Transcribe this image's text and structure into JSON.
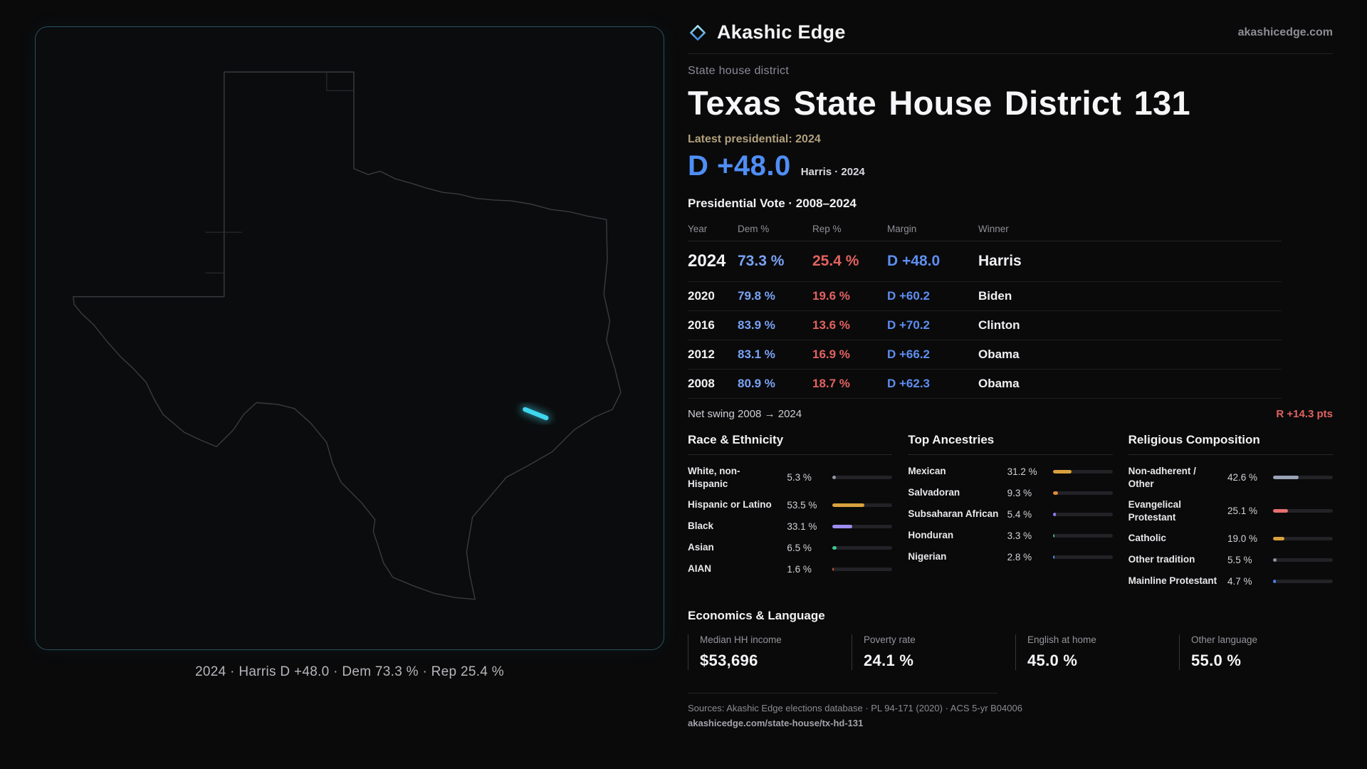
{
  "colors": {
    "dem": "#7aa3f5",
    "rep": "#e2625f",
    "margin-blue": "#5d8ef0",
    "headline-blue": "#4f8ef5",
    "swing-red": "#e2625f",
    "accent": "#3fd6ef"
  },
  "map": {
    "caption": "2024 · Harris D +48.0 · Dem 73.3 % · Rep 25.4 %"
  },
  "header": {
    "brand": "Akashic Edge",
    "site": "akashicedge.com",
    "kicker": "State house district",
    "title": "Texas State House District 131",
    "latest": "Latest presidential: 2024",
    "headline_margin": "D +48.0",
    "headline_detail": "Harris · 2024"
  },
  "vote_table": {
    "title": "Presidential Vote · 2008–2024",
    "columns": [
      "Year",
      "Dem %",
      "Rep %",
      "Margin",
      "Winner"
    ],
    "rows": [
      {
        "year": "2024",
        "dem": "73.3 %",
        "rep": "25.4 %",
        "margin": "D +48.0",
        "winner": "Harris"
      },
      {
        "year": "2020",
        "dem": "79.8 %",
        "rep": "19.6 %",
        "margin": "D +60.2",
        "winner": "Biden"
      },
      {
        "year": "2016",
        "dem": "83.9 %",
        "rep": "13.6 %",
        "margin": "D +70.2",
        "winner": "Clinton"
      },
      {
        "year": "2012",
        "dem": "83.1 %",
        "rep": "16.9 %",
        "margin": "D +66.2",
        "winner": "Obama"
      },
      {
        "year": "2008",
        "dem": "80.9 %",
        "rep": "18.7 %",
        "margin": "D +62.3",
        "winner": "Obama"
      }
    ],
    "swing_label": "Net swing 2008 → 2024",
    "swing_value": "R +14.3 pts"
  },
  "demographics": [
    {
      "title": "Race & Ethnicity",
      "items": [
        {
          "label": "White, non-Hispanic",
          "value": "5.3 %",
          "pct": 5.3,
          "color": "#9298a2"
        },
        {
          "label": "Hispanic or Latino",
          "value": "53.5 %",
          "pct": 53.5,
          "color": "#d9a23d"
        },
        {
          "label": "Black",
          "value": "33.1 %",
          "pct": 33.1,
          "color": "#9d8df2"
        },
        {
          "label": "Asian",
          "value": "6.5 %",
          "pct": 6.5,
          "color": "#3ec78f"
        },
        {
          "label": "AIAN",
          "value": "1.6 %",
          "pct": 1.6,
          "color": "#c65b3a"
        }
      ]
    },
    {
      "title": "Top Ancestries",
      "items": [
        {
          "label": "Mexican",
          "value": "31.2 %",
          "pct": 31.2,
          "color": "#d9a23d"
        },
        {
          "label": "Salvadoran",
          "value": "9.3 %",
          "pct": 9.3,
          "color": "#e0883a"
        },
        {
          "label": "Subsaharan African",
          "value": "5.4 %",
          "pct": 5.4,
          "color": "#8f7df0"
        },
        {
          "label": "Honduran",
          "value": "3.3 %",
          "pct": 3.3,
          "color": "#45b08c"
        },
        {
          "label": "Nigerian",
          "value": "2.8 %",
          "pct": 2.8,
          "color": "#5c8cf0"
        }
      ]
    },
    {
      "title": "Religious Composition",
      "items": [
        {
          "label": "Non-adherent / Other",
          "value": "42.6 %",
          "pct": 42.6,
          "color": "#9aa3b5"
        },
        {
          "label": "Evangelical Protestant",
          "value": "25.1 %",
          "pct": 25.1,
          "color": "#e87070"
        },
        {
          "label": "Catholic",
          "value": "19.0 %",
          "pct": 19.0,
          "color": "#d9a23d"
        },
        {
          "label": "Other tradition",
          "value": "5.5 %",
          "pct": 5.5,
          "color": "#8d93a0"
        },
        {
          "label": "Mainline Protestant",
          "value": "4.7 %",
          "pct": 4.7,
          "color": "#4f7ce8"
        }
      ]
    }
  ],
  "economics": {
    "title": "Economics & Language",
    "stats": [
      {
        "label": "Median HH income",
        "value": "$53,696"
      },
      {
        "label": "Poverty rate",
        "value": "24.1 %"
      },
      {
        "label": "English at home",
        "value": "45.0 %"
      },
      {
        "label": "Other language",
        "value": "55.0 %"
      }
    ]
  },
  "footer": {
    "sources": "Sources: Akashic Edge elections database · PL 94-171 (2020) · ACS 5-yr B04006",
    "permalink": "akashicedge.com/state-house/tx-hd-131"
  },
  "chart_data": [
    {
      "type": "table",
      "title": "Presidential Vote · 2008–2024",
      "columns": [
        "Year",
        "Dem %",
        "Rep %",
        "Margin",
        "Winner"
      ],
      "rows": [
        [
          2024,
          73.3,
          25.4,
          "D +48.0",
          "Harris"
        ],
        [
          2020,
          79.8,
          19.6,
          "D +60.2",
          "Biden"
        ],
        [
          2016,
          83.9,
          13.6,
          "D +70.2",
          "Clinton"
        ],
        [
          2012,
          83.1,
          16.9,
          "D +66.2",
          "Obama"
        ],
        [
          2008,
          80.9,
          18.7,
          "D +62.3",
          "Obama"
        ]
      ],
      "annotations": [
        "Latest presidential: 2024 — D +48.0 (Harris)",
        "Net swing 2008 → 2024: R +14.3 pts"
      ]
    },
    {
      "type": "bar",
      "title": "Race & Ethnicity",
      "categories": [
        "White, non-Hispanic",
        "Hispanic or Latino",
        "Black",
        "Asian",
        "AIAN"
      ],
      "values": [
        5.3,
        53.5,
        33.1,
        6.5,
        1.6
      ],
      "unit": "%",
      "orientation": "horizontal",
      "xlim": [
        0,
        100
      ],
      "grid": false
    },
    {
      "type": "bar",
      "title": "Top Ancestries",
      "categories": [
        "Mexican",
        "Salvadoran",
        "Subsaharan African",
        "Honduran",
        "Nigerian"
      ],
      "values": [
        31.2,
        9.3,
        5.4,
        3.3,
        2.8
      ],
      "unit": "%",
      "orientation": "horizontal",
      "xlim": [
        0,
        100
      ],
      "grid": false
    },
    {
      "type": "bar",
      "title": "Religious Composition",
      "categories": [
        "Non-adherent / Other",
        "Evangelical Protestant",
        "Catholic",
        "Other tradition",
        "Mainline Protestant"
      ],
      "values": [
        42.6,
        25.1,
        19.0,
        5.5,
        4.7
      ],
      "unit": "%",
      "orientation": "horizontal",
      "xlim": [
        0,
        100
      ],
      "grid": false
    }
  ]
}
